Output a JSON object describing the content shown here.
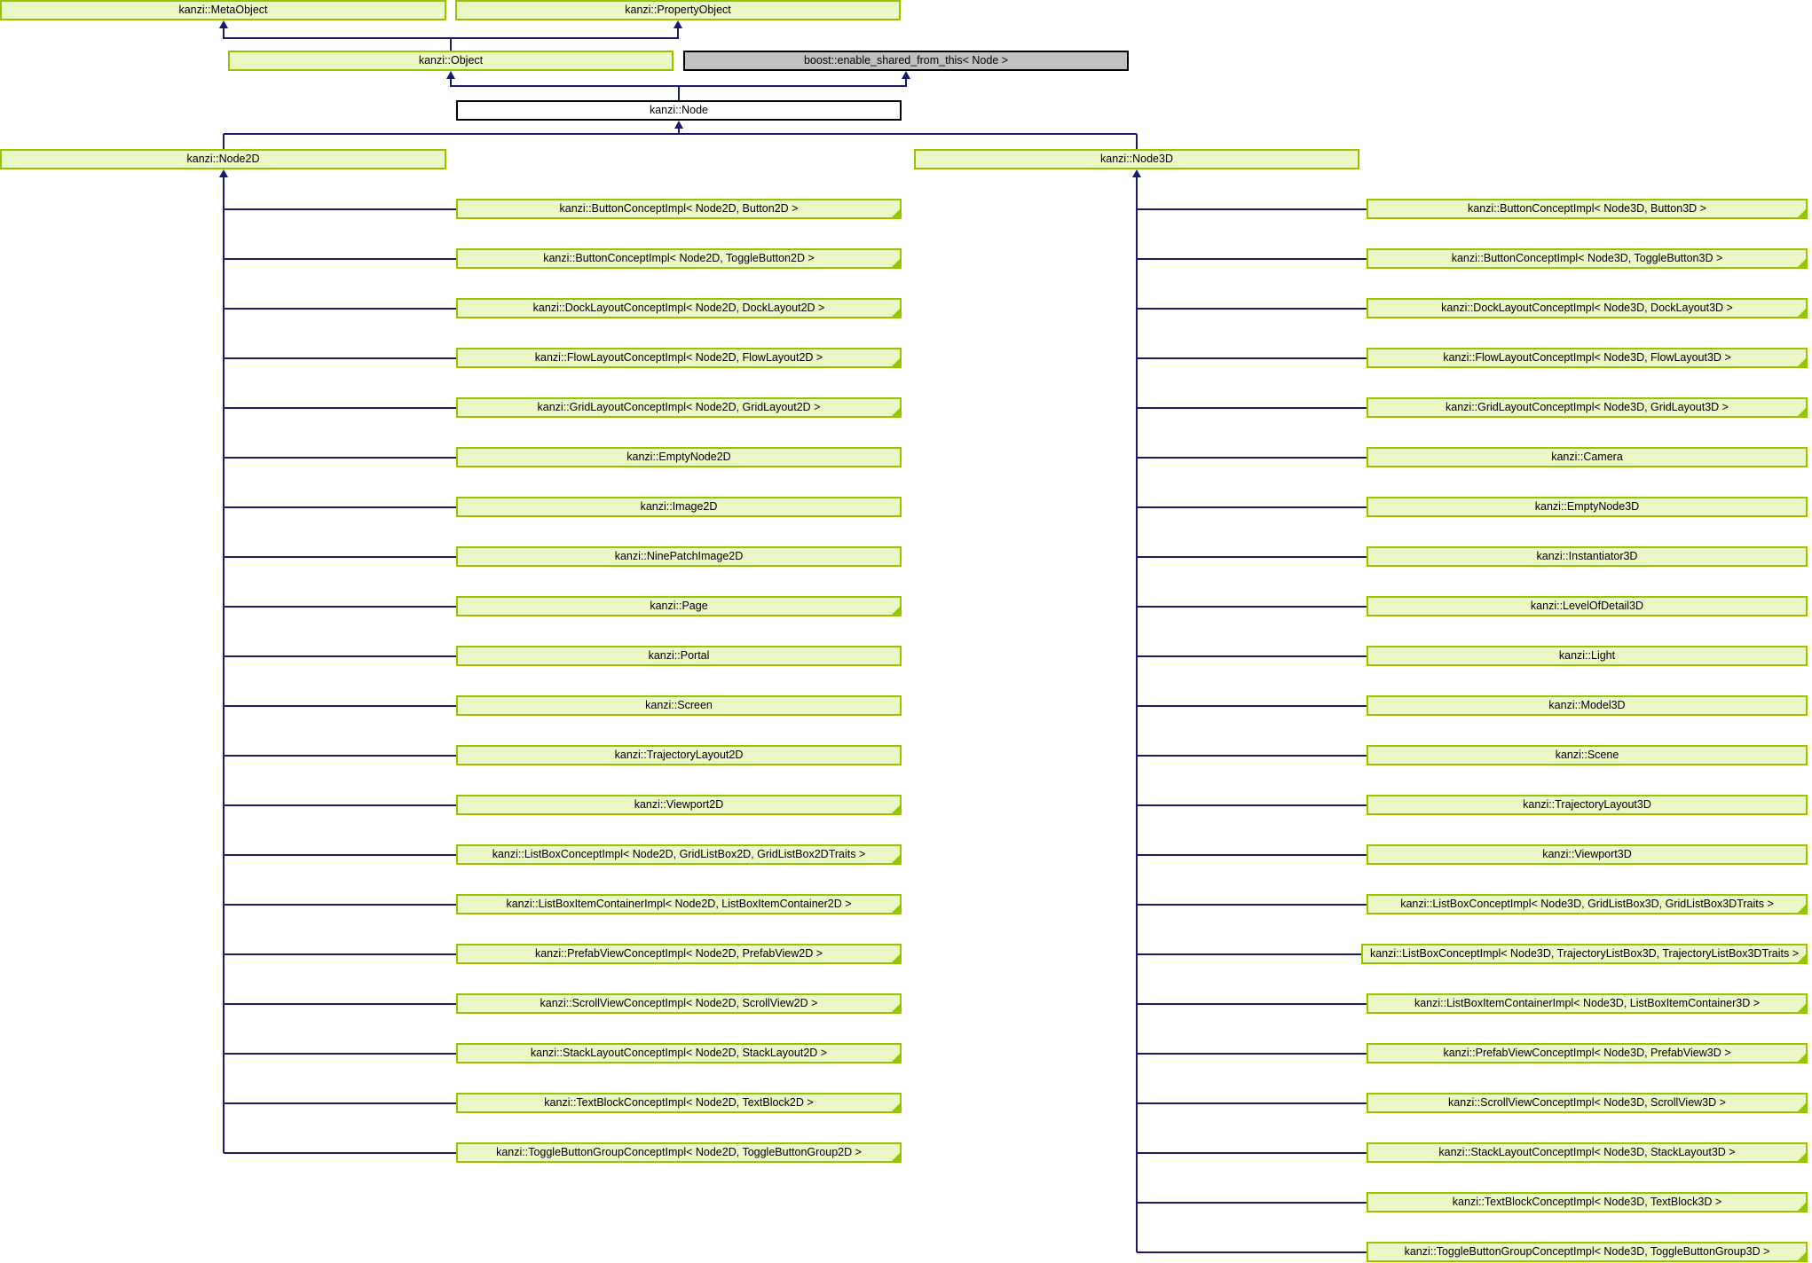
{
  "diagram": {
    "title": "kanzi Node class inheritance diagram",
    "colors": {
      "class_fill": "#ebf7c4",
      "class_border": "#94c600",
      "current_fill": "#ffffff",
      "current_border": "#000000",
      "external_fill": "#c0c0c0",
      "external_border": "#000000",
      "edge": "#191970",
      "text": "#000000",
      "background": "#ffffff"
    },
    "root_nodes": {
      "meta_object": "kanzi::MetaObject",
      "property_object": "kanzi::PropertyObject",
      "object": "kanzi::Object",
      "enable_shared": "boost::enable_shared_from_this< Node >",
      "node": "kanzi::Node",
      "node2d": "kanzi::Node2D",
      "node3d": "kanzi::Node3D"
    },
    "node2d_children": [
      {
        "label": "kanzi::ButtonConceptImpl< Node2D, Button2D >",
        "truncated": true
      },
      {
        "label": "kanzi::ButtonConceptImpl< Node2D, ToggleButton2D >",
        "truncated": true
      },
      {
        "label": "kanzi::DockLayoutConceptImpl< Node2D, DockLayout2D >",
        "truncated": true
      },
      {
        "label": "kanzi::FlowLayoutConceptImpl< Node2D, FlowLayout2D >",
        "truncated": true
      },
      {
        "label": "kanzi::GridLayoutConceptImpl< Node2D, GridLayout2D >",
        "truncated": true
      },
      {
        "label": "kanzi::EmptyNode2D",
        "truncated": false
      },
      {
        "label": "kanzi::Image2D",
        "truncated": false
      },
      {
        "label": "kanzi::NinePatchImage2D",
        "truncated": false
      },
      {
        "label": "kanzi::Page",
        "truncated": true
      },
      {
        "label": "kanzi::Portal",
        "truncated": false
      },
      {
        "label": "kanzi::Screen",
        "truncated": false
      },
      {
        "label": "kanzi::TrajectoryLayout2D",
        "truncated": false
      },
      {
        "label": "kanzi::Viewport2D",
        "truncated": true
      },
      {
        "label": "kanzi::ListBoxConceptImpl< Node2D, GridListBox2D, GridListBox2DTraits >",
        "truncated": true
      },
      {
        "label": "kanzi::ListBoxItemContainerImpl< Node2D, ListBoxItemContainer2D >",
        "truncated": true
      },
      {
        "label": "kanzi::PrefabViewConceptImpl< Node2D, PrefabView2D >",
        "truncated": true
      },
      {
        "label": "kanzi::ScrollViewConceptImpl< Node2D, ScrollView2D >",
        "truncated": true
      },
      {
        "label": "kanzi::StackLayoutConceptImpl< Node2D, StackLayout2D >",
        "truncated": true
      },
      {
        "label": "kanzi::TextBlockConceptImpl< Node2D, TextBlock2D >",
        "truncated": true
      },
      {
        "label": "kanzi::ToggleButtonGroupConceptImpl< Node2D, ToggleButtonGroup2D >",
        "truncated": true
      }
    ],
    "node3d_children": [
      {
        "label": "kanzi::ButtonConceptImpl< Node3D, Button3D >",
        "truncated": true
      },
      {
        "label": "kanzi::ButtonConceptImpl< Node3D, ToggleButton3D >",
        "truncated": true
      },
      {
        "label": "kanzi::DockLayoutConceptImpl< Node3D, DockLayout3D >",
        "truncated": true
      },
      {
        "label": "kanzi::FlowLayoutConceptImpl< Node3D, FlowLayout3D >",
        "truncated": true
      },
      {
        "label": "kanzi::GridLayoutConceptImpl< Node3D, GridLayout3D >",
        "truncated": true
      },
      {
        "label": "kanzi::Camera",
        "truncated": false
      },
      {
        "label": "kanzi::EmptyNode3D",
        "truncated": false
      },
      {
        "label": "kanzi::Instantiator3D",
        "truncated": false
      },
      {
        "label": "kanzi::LevelOfDetail3D",
        "truncated": false
      },
      {
        "label": "kanzi::Light",
        "truncated": false
      },
      {
        "label": "kanzi::Model3D",
        "truncated": false
      },
      {
        "label": "kanzi::Scene",
        "truncated": false
      },
      {
        "label": "kanzi::TrajectoryLayout3D",
        "truncated": false
      },
      {
        "label": "kanzi::Viewport3D",
        "truncated": false
      },
      {
        "label": "kanzi::ListBoxConceptImpl< Node3D, GridListBox3D, GridListBox3DTraits >",
        "truncated": true
      },
      {
        "label": "kanzi::ListBoxConceptImpl< Node3D, TrajectoryListBox3D, TrajectoryListBox3DTraits >",
        "truncated": true
      },
      {
        "label": "kanzi::ListBoxItemContainerImpl< Node3D, ListBoxItemContainer3D >",
        "truncated": true
      },
      {
        "label": "kanzi::PrefabViewConceptImpl< Node3D, PrefabView3D >",
        "truncated": true
      },
      {
        "label": "kanzi::ScrollViewConceptImpl< Node3D, ScrollView3D >",
        "truncated": true
      },
      {
        "label": "kanzi::StackLayoutConceptImpl< Node3D, StackLayout3D >",
        "truncated": true
      },
      {
        "label": "kanzi::TextBlockConceptImpl< Node3D, TextBlock3D >",
        "truncated": true
      },
      {
        "label": "kanzi::ToggleButtonGroupConceptImpl< Node3D, ToggleButtonGroup3D >",
        "truncated": true
      }
    ]
  }
}
